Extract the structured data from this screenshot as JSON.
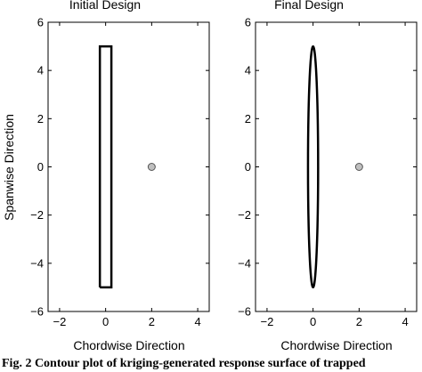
{
  "chart_data": [
    {
      "type": "line",
      "title": "Initial Design",
      "xlabel": "Chordwise Direction",
      "ylabel": "Spanwise Direction",
      "xlim": [
        -2.5,
        4.5
      ],
      "ylim": [
        -6,
        6
      ],
      "xticks": [
        -2,
        0,
        2,
        4
      ],
      "yticks": [
        -6,
        -4,
        -2,
        0,
        2,
        4,
        6
      ],
      "xtick_labels": [
        "−2",
        "0",
        "2",
        "4"
      ],
      "ytick_labels": [
        "−6",
        "−4",
        "−2",
        "0",
        "2",
        "4",
        "6"
      ],
      "grid": false,
      "series": [
        {
          "shape": "rectangle",
          "x": [
            -0.25,
            0.25,
            0.25,
            -0.25,
            -0.25
          ],
          "y": [
            -5,
            -5,
            5,
            5,
            -5
          ]
        },
        {
          "shape": "point",
          "x": [
            2
          ],
          "y": [
            0
          ]
        }
      ]
    },
    {
      "type": "line",
      "title": "Final Design",
      "xlabel": "Chordwise Direction",
      "ylabel": "",
      "xlim": [
        -2.5,
        4.5
      ],
      "ylim": [
        -6,
        6
      ],
      "xticks": [
        -2,
        0,
        2,
        4
      ],
      "yticks": [
        -6,
        -4,
        -2,
        0,
        2,
        4,
        6
      ],
      "xtick_labels": [
        "−2",
        "0",
        "2",
        "4"
      ],
      "ytick_labels": [
        "−6",
        "−4",
        "−2",
        "0",
        "2",
        "4",
        "6"
      ],
      "grid": false,
      "series": [
        {
          "shape": "ellipse",
          "center": [
            0,
            0
          ],
          "half_width": 0.22,
          "half_height": 5
        },
        {
          "shape": "point",
          "x": [
            2
          ],
          "y": [
            0
          ]
        }
      ]
    }
  ],
  "caption": "Fig. 2    Contour plot of kriging-generated response surface of trapped",
  "colors": {
    "line": "#000000",
    "point_fill": "#bfbfbf",
    "point_stroke": "#555555"
  }
}
